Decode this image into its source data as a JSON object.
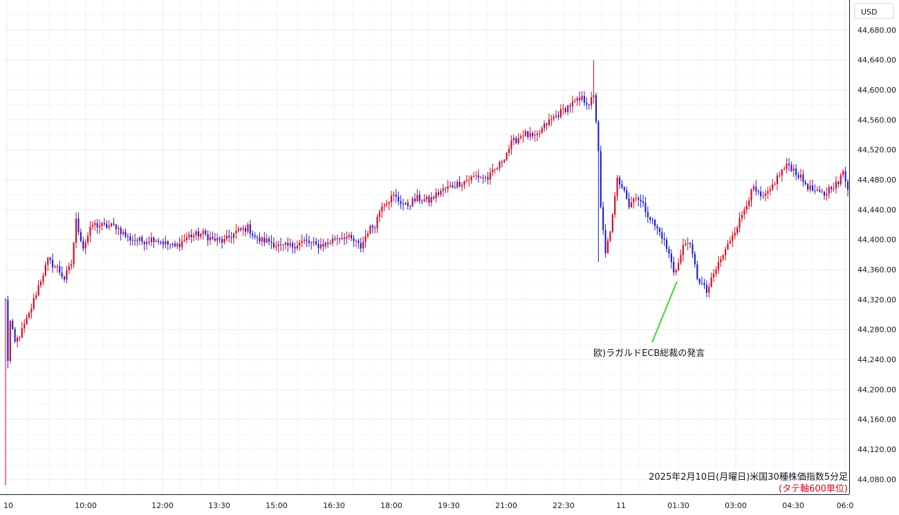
{
  "chart_data": {
    "type": "candlestick",
    "currency": "USD",
    "title": "2025年2月10日(月曜日)米国30種株価指数5分足",
    "subtitle": "(タテ軸600単位)",
    "ylim": [
      44060,
      44720
    ],
    "y_ticks": [
      "44,080.00",
      "44,120.00",
      "44,160.00",
      "44,200.00",
      "44,240.00",
      "44,280.00",
      "44,320.00",
      "44,360.00",
      "44,400.00",
      "44,440.00",
      "44,480.00",
      "44,520.00",
      "44,560.00",
      "44,600.00",
      "44,640.00",
      "44,680.00"
    ],
    "x_ticks": [
      "10",
      "10:00",
      "12:00",
      "13:30",
      "15:00",
      "16:30",
      "18:00",
      "19:30",
      "21:00",
      "22:30",
      "11",
      "01:30",
      "03:00",
      "04:30",
      "06:0"
    ],
    "grid": true,
    "up_color": "#e0001a",
    "down_color": "#1a1ad6",
    "annotation": {
      "text": "欧)ラガルドECB総裁の発言",
      "color": "#33dd33"
    },
    "anchors": [
      [
        0,
        44318
      ],
      [
        1,
        44240
      ],
      [
        2,
        44290
      ],
      [
        4,
        44262
      ],
      [
        7,
        44278
      ],
      [
        10,
        44300
      ],
      [
        14,
        44338
      ],
      [
        18,
        44372
      ],
      [
        22,
        44362
      ],
      [
        25,
        44348
      ],
      [
        28,
        44368
      ],
      [
        30,
        44425
      ],
      [
        33,
        44390
      ],
      [
        37,
        44420
      ],
      [
        42,
        44418
      ],
      [
        47,
        44418
      ],
      [
        52,
        44402
      ],
      [
        58,
        44398
      ],
      [
        63,
        44402
      ],
      [
        68,
        44395
      ],
      [
        72,
        44390
      ],
      [
        78,
        44405
      ],
      [
        84,
        44408
      ],
      [
        88,
        44400
      ],
      [
        93,
        44398
      ],
      [
        98,
        44410
      ],
      [
        103,
        44416
      ],
      [
        107,
        44400
      ],
      [
        112,
        44398
      ],
      [
        117,
        44390
      ],
      [
        122,
        44392
      ],
      [
        127,
        44398
      ],
      [
        132,
        44392
      ],
      [
        137,
        44395
      ],
      [
        140,
        44402
      ],
      [
        144,
        44405
      ],
      [
        148,
        44398
      ],
      [
        151,
        44390
      ],
      [
        154,
        44412
      ],
      [
        157,
        44420
      ],
      [
        160,
        44448
      ],
      [
        165,
        44458
      ],
      [
        170,
        44445
      ],
      [
        175,
        44455
      ],
      [
        180,
        44452
      ],
      [
        185,
        44465
      ],
      [
        190,
        44472
      ],
      [
        195,
        44478
      ],
      [
        200,
        44485
      ],
      [
        205,
        44482
      ],
      [
        210,
        44500
      ],
      [
        215,
        44528
      ],
      [
        220,
        44542
      ],
      [
        225,
        44535
      ],
      [
        230,
        44555
      ],
      [
        235,
        44568
      ],
      [
        240,
        44580
      ],
      [
        245,
        44588
      ],
      [
        248,
        44582
      ],
      [
        250,
        44590
      ],
      [
        251,
        44560
      ],
      [
        252,
        44520
      ],
      [
        253,
        44440
      ],
      [
        255,
        44380
      ],
      [
        258,
        44430
      ],
      [
        260,
        44480
      ],
      [
        263,
        44470
      ],
      [
        265,
        44445
      ],
      [
        268,
        44460
      ],
      [
        272,
        44440
      ],
      [
        276,
        44418
      ],
      [
        279,
        44405
      ],
      [
        282,
        44380
      ],
      [
        284,
        44358
      ],
      [
        286,
        44368
      ],
      [
        288,
        44390
      ],
      [
        290,
        44400
      ],
      [
        292,
        44378
      ],
      [
        294,
        44350
      ],
      [
        296,
        44340
      ],
      [
        298,
        44330
      ],
      [
        300,
        44345
      ],
      [
        303,
        44368
      ],
      [
        306,
        44385
      ],
      [
        309,
        44408
      ],
      [
        312,
        44425
      ],
      [
        315,
        44450
      ],
      [
        318,
        44468
      ],
      [
        321,
        44455
      ],
      [
        324,
        44460
      ],
      [
        327,
        44478
      ],
      [
        330,
        44492
      ],
      [
        333,
        44500
      ],
      [
        336,
        44490
      ],
      [
        339,
        44478
      ],
      [
        342,
        44468
      ],
      [
        345,
        44462
      ],
      [
        348,
        44460
      ],
      [
        351,
        44472
      ],
      [
        354,
        44475
      ],
      [
        356,
        44490
      ],
      [
        358,
        44470
      ]
    ]
  }
}
